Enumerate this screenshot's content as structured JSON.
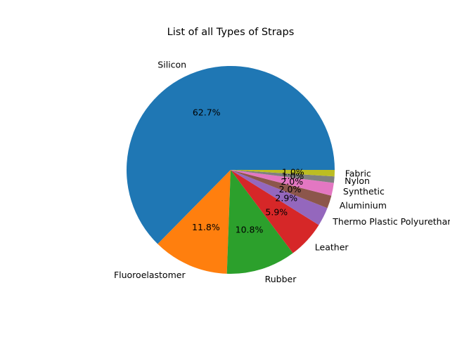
{
  "chart_data": {
    "type": "pie",
    "title": "List of all Types of Straps",
    "categories": [
      "Silicon",
      "Fluoroelastomer",
      "Rubber",
      "Leather",
      "Thermo Plastic Polyurethane",
      "Aluminium",
      "Synthetic",
      "Nylon",
      "Fabric"
    ],
    "values": [
      62.7,
      11.8,
      10.8,
      5.9,
      2.9,
      2.0,
      2.0,
      1.0,
      1.0
    ],
    "value_labels": [
      "62.7%",
      "11.8%",
      "10.8%",
      "5.9%",
      "2.9%",
      "2.0%",
      "2.0%",
      "1.0%",
      "1.0%"
    ],
    "colors": [
      "#1f77b4",
      "#ff7f0e",
      "#2ca02c",
      "#d62728",
      "#9467bd",
      "#8c564b",
      "#e377c2",
      "#7f7f7f",
      "#bcbd22"
    ],
    "legend": "none",
    "grid": false
  }
}
